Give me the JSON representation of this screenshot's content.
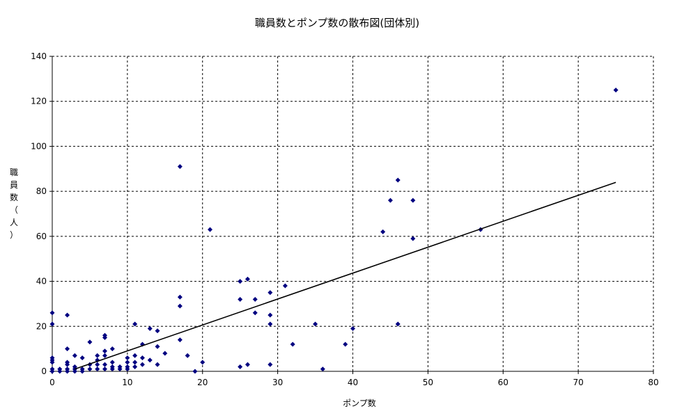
{
  "chart_data": {
    "type": "scatter",
    "title": "職員数とポンプ数の散布図(団体別)",
    "xlabel": "ポンプ数",
    "ylabel": "職員数（人）",
    "xlim": [
      0,
      80
    ],
    "ylim": [
      0,
      140
    ],
    "x_ticks": [
      "0",
      "10",
      "20",
      "30",
      "40",
      "50",
      "60",
      "70",
      "80"
    ],
    "y_ticks": [
      "0",
      "20",
      "40",
      "60",
      "80",
      "100",
      "120",
      "140"
    ],
    "grid": true,
    "legend": "none",
    "marker_color": "#000080",
    "trendline": {
      "x": [
        3,
        75
      ],
      "y": [
        1,
        84
      ],
      "color": "#000000"
    },
    "points": [
      [
        0,
        26
      ],
      [
        0,
        21
      ],
      [
        0,
        6
      ],
      [
        0,
        5
      ],
      [
        0,
        4
      ],
      [
        0,
        1
      ],
      [
        0,
        0
      ],
      [
        1,
        1
      ],
      [
        1,
        0
      ],
      [
        2,
        25
      ],
      [
        2,
        10
      ],
      [
        2,
        4
      ],
      [
        2,
        3
      ],
      [
        2,
        1
      ],
      [
        2,
        0
      ],
      [
        3,
        7
      ],
      [
        3,
        2
      ],
      [
        3,
        1
      ],
      [
        3,
        0
      ],
      [
        4,
        6
      ],
      [
        4,
        1
      ],
      [
        4,
        0
      ],
      [
        5,
        13
      ],
      [
        5,
        3
      ],
      [
        5,
        1
      ],
      [
        6,
        7
      ],
      [
        6,
        5
      ],
      [
        6,
        3
      ],
      [
        6,
        1
      ],
      [
        7,
        16
      ],
      [
        7,
        15
      ],
      [
        7,
        9
      ],
      [
        7,
        7
      ],
      [
        7,
        3
      ],
      [
        7,
        1
      ],
      [
        8,
        10
      ],
      [
        8,
        4
      ],
      [
        8,
        2
      ],
      [
        8,
        1
      ],
      [
        9,
        2
      ],
      [
        9,
        1
      ],
      [
        10,
        6
      ],
      [
        10,
        4
      ],
      [
        10,
        2
      ],
      [
        10,
        1
      ],
      [
        11,
        21
      ],
      [
        11,
        7
      ],
      [
        11,
        4
      ],
      [
        11,
        2
      ],
      [
        12,
        12
      ],
      [
        12,
        6
      ],
      [
        12,
        3
      ],
      [
        13,
        19
      ],
      [
        13,
        5
      ],
      [
        14,
        18
      ],
      [
        14,
        11
      ],
      [
        14,
        3
      ],
      [
        15,
        8
      ],
      [
        17,
        91
      ],
      [
        17,
        33
      ],
      [
        17,
        29
      ],
      [
        17,
        14
      ],
      [
        18,
        7
      ],
      [
        19,
        0
      ],
      [
        20,
        4
      ],
      [
        21,
        63
      ],
      [
        25,
        40
      ],
      [
        25,
        32
      ],
      [
        25,
        2
      ],
      [
        26,
        41
      ],
      [
        26,
        3
      ],
      [
        27,
        32
      ],
      [
        27,
        26
      ],
      [
        29,
        35
      ],
      [
        29,
        25
      ],
      [
        29,
        21
      ],
      [
        29,
        3
      ],
      [
        31,
        38
      ],
      [
        32,
        12
      ],
      [
        35,
        21
      ],
      [
        36,
        1
      ],
      [
        39,
        12
      ],
      [
        40,
        19
      ],
      [
        44,
        62
      ],
      [
        45,
        76
      ],
      [
        46,
        85
      ],
      [
        46,
        21
      ],
      [
        48,
        76
      ],
      [
        48,
        59
      ],
      [
        57,
        63
      ],
      [
        75,
        125
      ]
    ]
  }
}
